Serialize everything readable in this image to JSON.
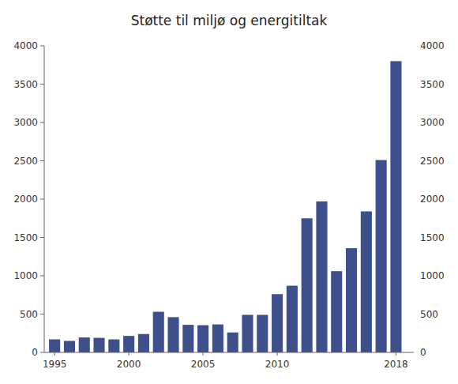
{
  "chart_data": {
    "type": "bar",
    "title": "Støtte til miljø og energitiltak",
    "x": [
      1995,
      1996,
      1997,
      1998,
      1999,
      2000,
      2001,
      2002,
      2003,
      2004,
      2005,
      2006,
      2007,
      2008,
      2009,
      2010,
      2011,
      2012,
      2013,
      2014,
      2015,
      2016,
      2017,
      2018
    ],
    "values": [
      170,
      150,
      195,
      190,
      170,
      215,
      240,
      530,
      460,
      360,
      355,
      365,
      260,
      490,
      490,
      760,
      870,
      1750,
      1970,
      1060,
      1360,
      1840,
      2510,
      3800
    ],
    "color": "#3d508c",
    "xlim": [
      1994.3,
      2019.2
    ],
    "xticks": [
      1995,
      2000,
      2005,
      2010,
      2018
    ],
    "ylim": [
      0,
      4000
    ],
    "yticks": [
      0,
      500,
      1000,
      1500,
      2000,
      2500,
      3000,
      3500,
      4000
    ],
    "y2lim": [
      0,
      4000
    ],
    "y2ticks": [
      0,
      500,
      1000,
      1500,
      2000,
      2500,
      3000,
      3500,
      4000
    ],
    "grid": false
  }
}
